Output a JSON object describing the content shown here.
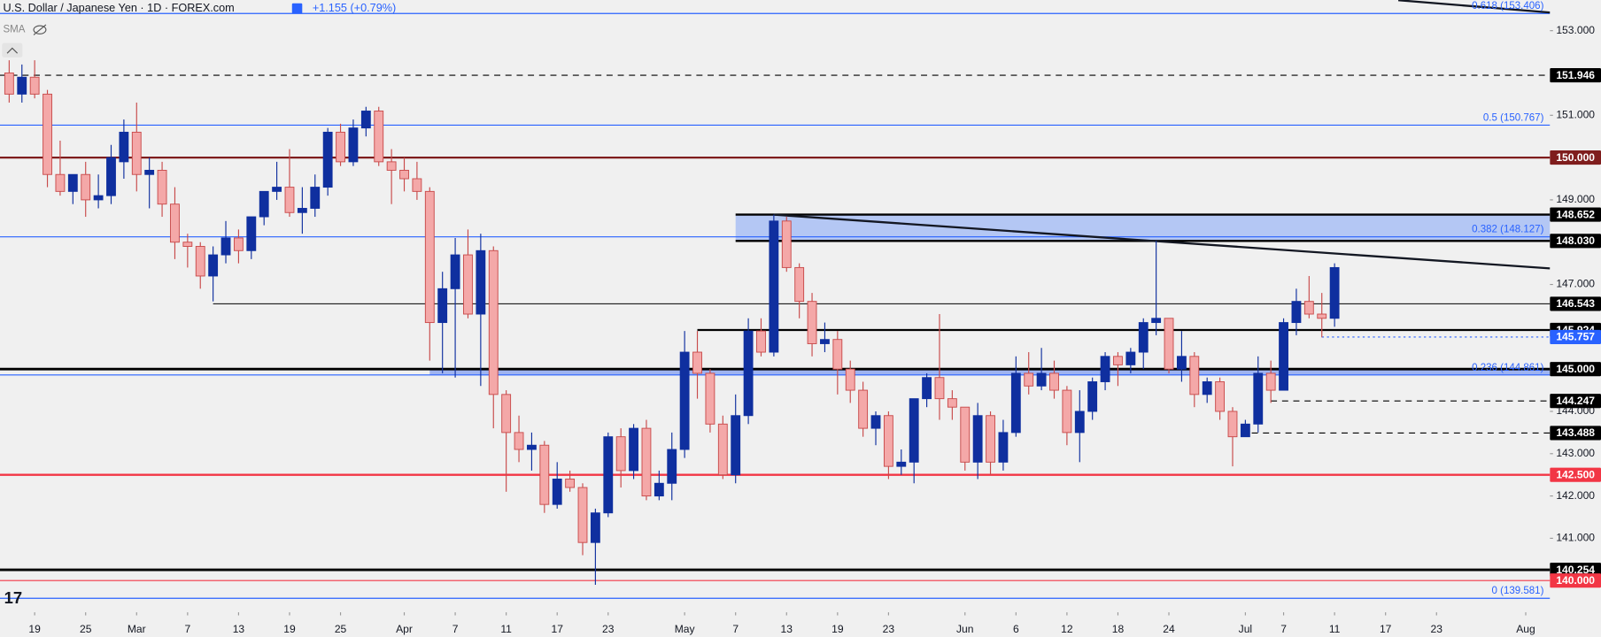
{
  "chart_data": {
    "type": "candlestick",
    "title": "U.S. Dollar / Japanese Yen · 1D · FOREX.com",
    "change": "+1.155 (+0.79%)",
    "indicator": "SMA",
    "up_color": "#0f2f9f",
    "down_color": "#f4a8a8",
    "down_border": "#c84a4a",
    "xlim": [
      -0.72,
      120.9
    ],
    "ylim": [
      139.25,
      153.72
    ],
    "yticks": [
      {
        "value": 153,
        "label": "153.000"
      },
      {
        "value": 151,
        "label": "151.000"
      },
      {
        "value": 149,
        "label": "149.000"
      },
      {
        "value": 147,
        "label": "147.000"
      },
      {
        "value": 144,
        "label": "144.000"
      },
      {
        "value": 143,
        "label": "143.000"
      },
      {
        "value": 142,
        "label": "142.000"
      },
      {
        "value": 141,
        "label": "141.000"
      }
    ],
    "xticks": [
      {
        "value": 2,
        "label": "19"
      },
      {
        "value": 6,
        "label": "25"
      },
      {
        "value": 10,
        "label": "Mar"
      },
      {
        "value": 14,
        "label": "7"
      },
      {
        "value": 18,
        "label": "13"
      },
      {
        "value": 22,
        "label": "19"
      },
      {
        "value": 26,
        "label": "25"
      },
      {
        "value": 31,
        "label": "Apr"
      },
      {
        "value": 35,
        "label": "7"
      },
      {
        "value": 39,
        "label": "11"
      },
      {
        "value": 43,
        "label": "17"
      },
      {
        "value": 47,
        "label": "23"
      },
      {
        "value": 53,
        "label": "May"
      },
      {
        "value": 57,
        "label": "7"
      },
      {
        "value": 61,
        "label": "13"
      },
      {
        "value": 65,
        "label": "19"
      },
      {
        "value": 69,
        "label": "23"
      },
      {
        "value": 75,
        "label": "Jun"
      },
      {
        "value": 79,
        "label": "6"
      },
      {
        "value": 83,
        "label": "12"
      },
      {
        "value": 87,
        "label": "18"
      },
      {
        "value": 91,
        "label": "24"
      },
      {
        "value": 97,
        "label": "Jul"
      },
      {
        "value": 100,
        "label": "7"
      },
      {
        "value": 104,
        "label": "11"
      },
      {
        "value": 108,
        "label": "17"
      },
      {
        "value": 112,
        "label": "23"
      },
      {
        "value": 119,
        "label": "Aug"
      }
    ],
    "open": [
      152.0,
      151.5,
      151.9,
      151.5,
      149.6,
      149.2,
      149.6,
      149.0,
      149.1,
      149.9,
      150.6,
      149.6,
      149.7,
      148.9,
      148.0,
      147.9,
      147.2,
      147.7,
      148.1,
      147.8,
      148.6,
      149.2,
      149.3,
      148.7,
      148.8,
      149.3,
      150.6,
      149.9,
      150.7,
      151.1,
      149.9,
      149.7,
      149.5,
      149.2,
      146.1,
      146.9,
      147.7,
      146.3,
      147.8,
      144.4,
      143.5,
      143.1,
      143.2,
      141.8,
      142.4,
      142.2,
      140.9,
      141.6,
      143.4,
      142.6,
      143.6,
      142.0,
      142.3,
      143.1,
      145.4,
      144.9,
      143.7,
      142.5,
      143.9,
      145.9,
      145.4,
      148.5,
      147.4,
      146.6,
      145.6,
      145.7,
      145.0,
      144.5,
      143.6,
      143.9,
      142.7,
      142.8,
      144.3,
      144.8,
      144.3,
      144.1,
      142.8,
      143.9,
      142.8,
      143.5,
      144.9,
      144.6,
      144.9,
      144.5,
      143.5,
      144.0,
      144.7,
      145.3,
      145.1,
      145.4,
      146.1,
      146.2,
      145.0,
      145.3,
      144.4,
      144.7,
      144.0,
      143.4,
      143.7,
      144.9,
      144.5,
      146.1,
      146.6,
      146.3,
      146.2
    ],
    "high": [
      152.3,
      152.2,
      152.3,
      151.6,
      150.4,
      149.6,
      149.9,
      149.6,
      150.3,
      150.9,
      151.3,
      150.0,
      149.9,
      149.3,
      148.2,
      148.0,
      147.9,
      148.5,
      148.3,
      148.6,
      149.2,
      149.9,
      150.2,
      149.3,
      149.6,
      150.7,
      150.8,
      150.9,
      151.2,
      151.2,
      150.2,
      150.0,
      149.9,
      149.3,
      147.3,
      148.1,
      148.3,
      148.2,
      147.9,
      144.5,
      143.9,
      143.5,
      143.3,
      142.8,
      142.6,
      142.3,
      141.7,
      143.5,
      143.6,
      143.7,
      143.8,
      142.6,
      143.5,
      145.9,
      145.9,
      145.0,
      143.9,
      144.4,
      146.2,
      146.2,
      148.65,
      148.6,
      147.5,
      146.8,
      146.1,
      145.9,
      145.2,
      144.7,
      144.0,
      144.0,
      143.1,
      144.3,
      144.9,
      146.3,
      144.5,
      144.1,
      144.2,
      144.0,
      143.8,
      145.3,
      145.4,
      145.5,
      145.2,
      144.6,
      144.5,
      144.8,
      145.4,
      145.4,
      145.5,
      146.2,
      148.03,
      146.2,
      145.9,
      145.4,
      144.8,
      144.8,
      144.1,
      143.8,
      145.3,
      145.2,
      146.2,
      146.9,
      147.2,
      146.8,
      147.5
    ],
    "low": [
      151.3,
      151.3,
      151.4,
      149.3,
      149.1,
      148.9,
      148.6,
      148.8,
      148.9,
      149.5,
      149.2,
      148.8,
      148.6,
      147.6,
      147.4,
      146.9,
      146.6,
      147.5,
      147.5,
      147.6,
      148.4,
      149.0,
      148.6,
      148.2,
      148.6,
      149.1,
      149.8,
      149.8,
      150.5,
      149.8,
      148.9,
      149.2,
      149.0,
      145.2,
      144.9,
      144.8,
      146.2,
      144.6,
      143.6,
      142.1,
      142.8,
      142.6,
      141.6,
      141.7,
      142.1,
      140.6,
      139.9,
      141.5,
      142.2,
      142.4,
      141.9,
      141.9,
      141.9,
      142.9,
      144.3,
      143.5,
      142.4,
      142.3,
      143.7,
      145.3,
      145.3,
      147.3,
      146.2,
      145.3,
      145.4,
      144.4,
      144.2,
      143.4,
      143.2,
      142.4,
      142.5,
      142.3,
      144.1,
      143.8,
      143.8,
      142.6,
      142.4,
      142.5,
      142.6,
      143.4,
      144.4,
      144.5,
      144.3,
      143.2,
      142.8,
      143.8,
      144.5,
      144.6,
      144.9,
      145.0,
      145.8,
      144.9,
      144.7,
      144.1,
      144.2,
      143.8,
      142.7,
      143.4,
      143.5,
      144.2,
      144.5,
      145.8,
      146.2,
      145.75,
      146.0
    ],
    "close": [
      151.5,
      151.9,
      151.5,
      149.6,
      149.2,
      149.6,
      149.0,
      149.1,
      150.0,
      150.6,
      149.6,
      149.7,
      148.9,
      148.0,
      147.9,
      147.2,
      147.7,
      148.1,
      147.8,
      148.6,
      149.2,
      149.3,
      148.7,
      148.8,
      149.3,
      150.6,
      149.9,
      150.7,
      151.1,
      149.9,
      149.7,
      149.5,
      149.2,
      146.1,
      146.9,
      147.7,
      146.3,
      147.8,
      144.4,
      143.5,
      143.1,
      143.2,
      141.8,
      142.4,
      142.2,
      140.9,
      141.6,
      143.4,
      142.6,
      143.6,
      142.0,
      142.3,
      143.1,
      145.4,
      144.9,
      143.7,
      142.5,
      143.9,
      145.9,
      145.4,
      148.5,
      147.4,
      146.6,
      145.6,
      145.7,
      145.0,
      144.5,
      143.6,
      143.9,
      142.7,
      142.8,
      144.3,
      144.8,
      144.3,
      144.1,
      142.8,
      143.9,
      142.8,
      143.5,
      144.9,
      144.6,
      144.9,
      144.5,
      143.5,
      144.0,
      144.7,
      145.3,
      145.1,
      145.4,
      146.1,
      146.2,
      145.0,
      145.3,
      144.4,
      144.7,
      144.0,
      143.4,
      143.7,
      144.9,
      144.5,
      146.1,
      146.6,
      146.3,
      146.2,
      147.4
    ],
    "zones": [
      {
        "from": 148.03,
        "to": 148.652,
        "x_start": 57,
        "color": "#a9bff5"
      },
      {
        "from": 144.861,
        "to": 145.0,
        "x_start": 33,
        "color": "#8fa8f0"
      }
    ],
    "fib_color": "#2962ff",
    "fibs": [
      {
        "value": 153.406,
        "label": "0.618 (153.406)"
      },
      {
        "value": 150.767,
        "label": "0.5 (150.767)"
      },
      {
        "value": 148.127,
        "label": "0.382 (148.127)"
      },
      {
        "value": 144.861,
        "label": "0.236 (144.861)"
      },
      {
        "value": 139.581,
        "label": "0 (139.581)"
      }
    ],
    "levels": [
      {
        "value": 151.946,
        "label": "151.946",
        "color": "#000000",
        "style": "dashed",
        "width": 1
      },
      {
        "value": 150.0,
        "label": "150.000",
        "color": "#7f1d1d",
        "style": "solid",
        "width": 2
      },
      {
        "value": 148.652,
        "label": "148.652",
        "color": "#000000",
        "style": "solid",
        "width": 2,
        "x_start": 57
      },
      {
        "value": 148.03,
        "label": "148.030",
        "color": "#000000",
        "style": "solid",
        "width": 2,
        "x_start": 57
      },
      {
        "value": 146.543,
        "label": "146.543",
        "color": "#000000",
        "style": "solid",
        "width": 0.8,
        "x_start": 16
      },
      {
        "value": 145.924,
        "label": "145.924",
        "color": "#000000",
        "style": "solid",
        "width": 2,
        "x_start": 54
      },
      {
        "value": 145.757,
        "label": "145.757",
        "color": "#2962ff",
        "style": "dotted",
        "width": 1,
        "x_start": 103
      },
      {
        "value": 145.0,
        "label": "145.000",
        "color": "#000000",
        "style": "solid",
        "width": 2.5
      },
      {
        "value": 144.247,
        "label": "144.247",
        "color": "#000000",
        "style": "dashed",
        "width": 1,
        "x_start": 99
      },
      {
        "value": 143.488,
        "label": "143.488",
        "color": "#000000",
        "style": "dashed",
        "width": 1,
        "x_start": 97.5
      },
      {
        "value": 142.5,
        "label": "142.500",
        "color": "#f23645",
        "style": "solid",
        "width": 2
      },
      {
        "value": 140.254,
        "label": "140.254",
        "color": "#000000",
        "style": "solid",
        "width": 2.5
      },
      {
        "value": 140.0,
        "label": "140.000",
        "color": "#f23645",
        "style": "solid",
        "width": 1
      }
    ],
    "trendlines": [
      {
        "x": [
          60,
          120.9
        ],
        "y": [
          148.65,
          147.38
        ]
      },
      {
        "x": [
          109,
          120.9
        ],
        "y": [
          153.72,
          153.43
        ]
      }
    ]
  }
}
